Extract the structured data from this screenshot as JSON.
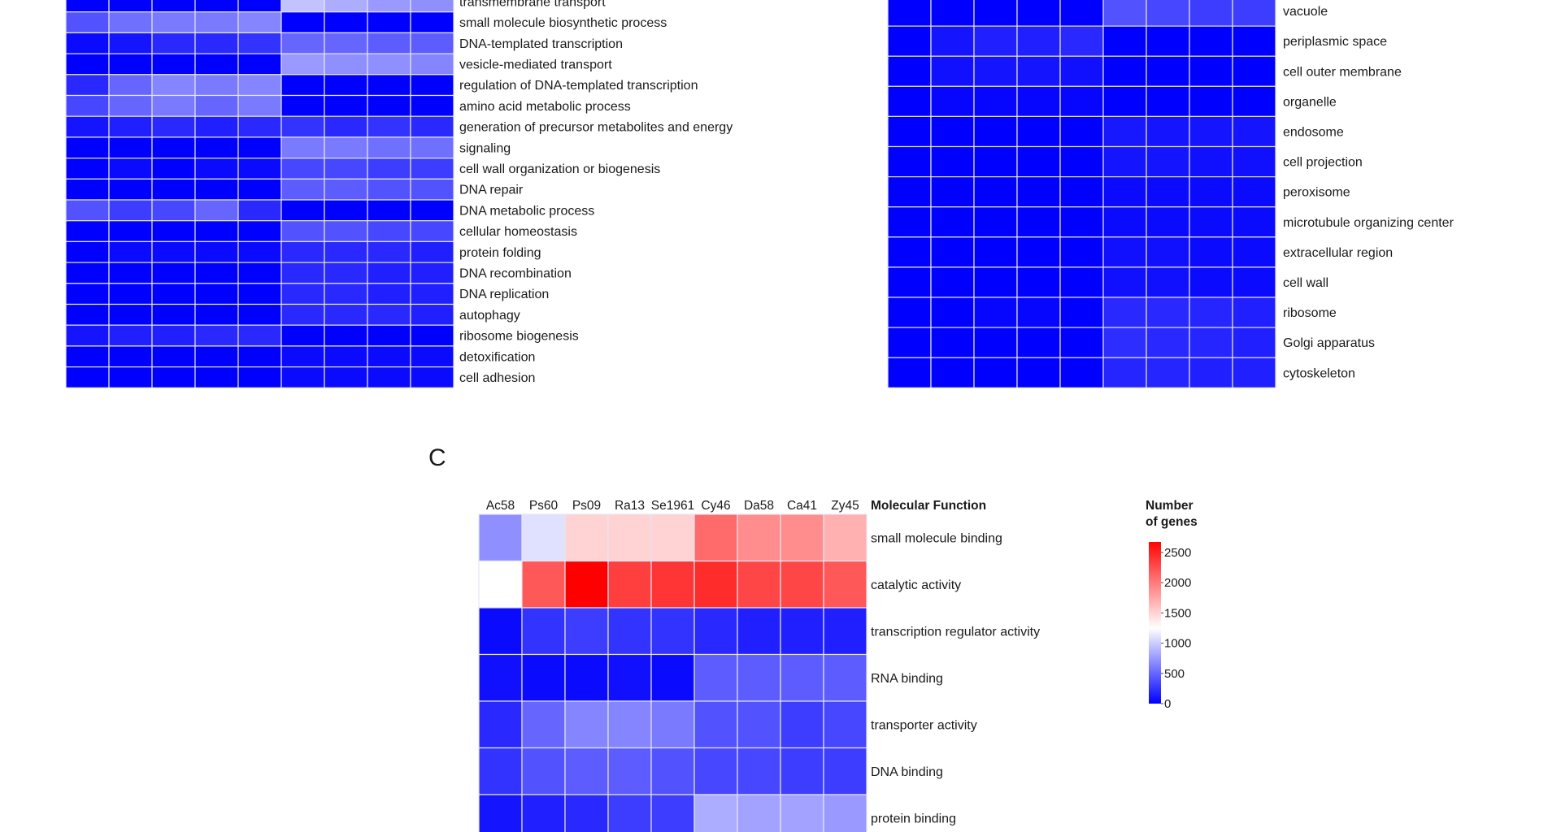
{
  "colors": {
    "low": "#0000ff",
    "mid": "#ffffff",
    "high": "#ff0000",
    "grid": "#e6e6f2"
  },
  "chart_data": [
    {
      "type": "heatmap",
      "color_scale": {
        "low": 0,
        "mid": 1250,
        "high": 2700
      },
      "rows": [
        "transmembrane transport",
        "small molecule biosynthetic process",
        "DNA-templated transcription",
        "vesicle-mediated transport",
        "regulation of DNA-templated transcription",
        "amino acid metabolic process",
        "generation of precursor metabolites and energy",
        "signaling",
        "cell wall organization or biogenesis",
        "DNA repair",
        "DNA metabolic process",
        "cellular homeostasis",
        "protein folding",
        "DNA recombination",
        "DNA replication",
        "autophagy",
        "ribosome biogenesis",
        "detoxification",
        "cell adhesion"
      ],
      "values": [
        [
          0,
          0,
          0,
          0,
          0,
          950,
          850,
          750,
          700
        ],
        [
          400,
          550,
          600,
          600,
          650,
          0,
          0,
          0,
          0
        ],
        [
          50,
          100,
          200,
          200,
          250,
          500,
          500,
          450,
          450
        ],
        [
          0,
          0,
          0,
          0,
          0,
          750,
          700,
          700,
          650
        ],
        [
          200,
          500,
          650,
          600,
          650,
          0,
          0,
          0,
          0
        ],
        [
          350,
          500,
          600,
          500,
          600,
          0,
          0,
          0,
          0
        ],
        [
          100,
          150,
          200,
          150,
          200,
          250,
          200,
          250,
          200
        ],
        [
          0,
          0,
          0,
          0,
          0,
          600,
          600,
          550,
          550
        ],
        [
          0,
          50,
          0,
          50,
          50,
          350,
          350,
          300,
          300
        ],
        [
          0,
          0,
          0,
          0,
          0,
          450,
          450,
          400,
          400
        ],
        [
          400,
          300,
          350,
          500,
          200,
          0,
          0,
          0,
          0
        ],
        [
          0,
          0,
          0,
          0,
          0,
          400,
          400,
          350,
          350
        ],
        [
          0,
          50,
          50,
          50,
          50,
          200,
          200,
          200,
          150
        ],
        [
          0,
          0,
          0,
          0,
          0,
          200,
          200,
          150,
          150
        ],
        [
          0,
          0,
          0,
          0,
          0,
          200,
          200,
          150,
          150
        ],
        [
          0,
          0,
          0,
          0,
          0,
          200,
          200,
          200,
          150
        ],
        [
          100,
          150,
          150,
          200,
          200,
          0,
          0,
          0,
          0
        ],
        [
          0,
          0,
          0,
          0,
          0,
          50,
          50,
          50,
          50
        ],
        [
          0,
          0,
          0,
          0,
          0,
          50,
          50,
          50,
          50
        ]
      ]
    },
    {
      "type": "heatmap",
      "color_scale": {
        "low": 0,
        "mid": 1250,
        "high": 2700
      },
      "rows": [
        "vacuole",
        "periplasmic space",
        "cell outer membrane",
        "organelle",
        "endosome",
        "cell projection",
        "peroxisome",
        "microtubule organizing center",
        "extracellular region",
        "cell wall",
        "ribosome",
        "Golgi apparatus",
        "cytoskeleton"
      ],
      "values": [
        [
          0,
          0,
          0,
          0,
          0,
          400,
          350,
          300,
          300
        ],
        [
          0,
          100,
          150,
          150,
          200,
          0,
          0,
          0,
          0
        ],
        [
          0,
          80,
          100,
          100,
          80,
          0,
          0,
          0,
          0
        ],
        [
          0,
          30,
          30,
          30,
          30,
          0,
          0,
          0,
          0
        ],
        [
          0,
          0,
          0,
          0,
          0,
          120,
          100,
          100,
          100
        ],
        [
          0,
          0,
          0,
          0,
          0,
          100,
          100,
          80,
          80
        ],
        [
          0,
          0,
          0,
          0,
          0,
          50,
          50,
          50,
          50
        ],
        [
          0,
          0,
          0,
          0,
          0,
          50,
          50,
          50,
          50
        ],
        [
          0,
          0,
          0,
          0,
          0,
          80,
          80,
          50,
          50
        ],
        [
          0,
          0,
          0,
          0,
          0,
          80,
          80,
          50,
          50
        ],
        [
          0,
          0,
          30,
          30,
          0,
          200,
          200,
          180,
          150
        ],
        [
          0,
          0,
          0,
          0,
          0,
          220,
          200,
          180,
          150
        ],
        [
          0,
          0,
          0,
          0,
          0,
          180,
          180,
          150,
          150
        ]
      ]
    },
    {
      "type": "heatmap",
      "panel_label": "C",
      "row_header": "Molecular Function",
      "columns": [
        "Ac58",
        "Ps60",
        "Ps09",
        "Ra13",
        "Se1961",
        "Cy46",
        "Da58",
        "Ca41",
        "Zy45"
      ],
      "rows": [
        "small  molecule  binding",
        "catalytic  activity",
        "transcription  regulator  activity",
        "RNA  binding",
        "transporter  activity",
        "DNA  binding",
        "protein  binding"
      ],
      "values": [
        [
          700,
          1100,
          1500,
          1500,
          1500,
          2100,
          1900,
          1900,
          1700
        ],
        [
          1250,
          2200,
          2700,
          2350,
          2400,
          2450,
          2300,
          2300,
          2200
        ],
        [
          50,
          250,
          300,
          250,
          250,
          200,
          150,
          150,
          150
        ],
        [
          80,
          50,
          50,
          80,
          50,
          450,
          450,
          450,
          450
        ],
        [
          200,
          500,
          650,
          650,
          600,
          400,
          400,
          300,
          350
        ],
        [
          250,
          400,
          450,
          450,
          400,
          350,
          350,
          300,
          300
        ],
        [
          100,
          150,
          200,
          300,
          300,
          850,
          800,
          800,
          750
        ]
      ],
      "legend": {
        "title_line1": "Number",
        "title_line2": "of genes",
        "ticks": [
          0,
          500,
          1000,
          1500,
          2000,
          2500
        ],
        "placement": "right"
      },
      "color_scale": {
        "low": 0,
        "mid": 1250,
        "high": 2700
      }
    }
  ]
}
